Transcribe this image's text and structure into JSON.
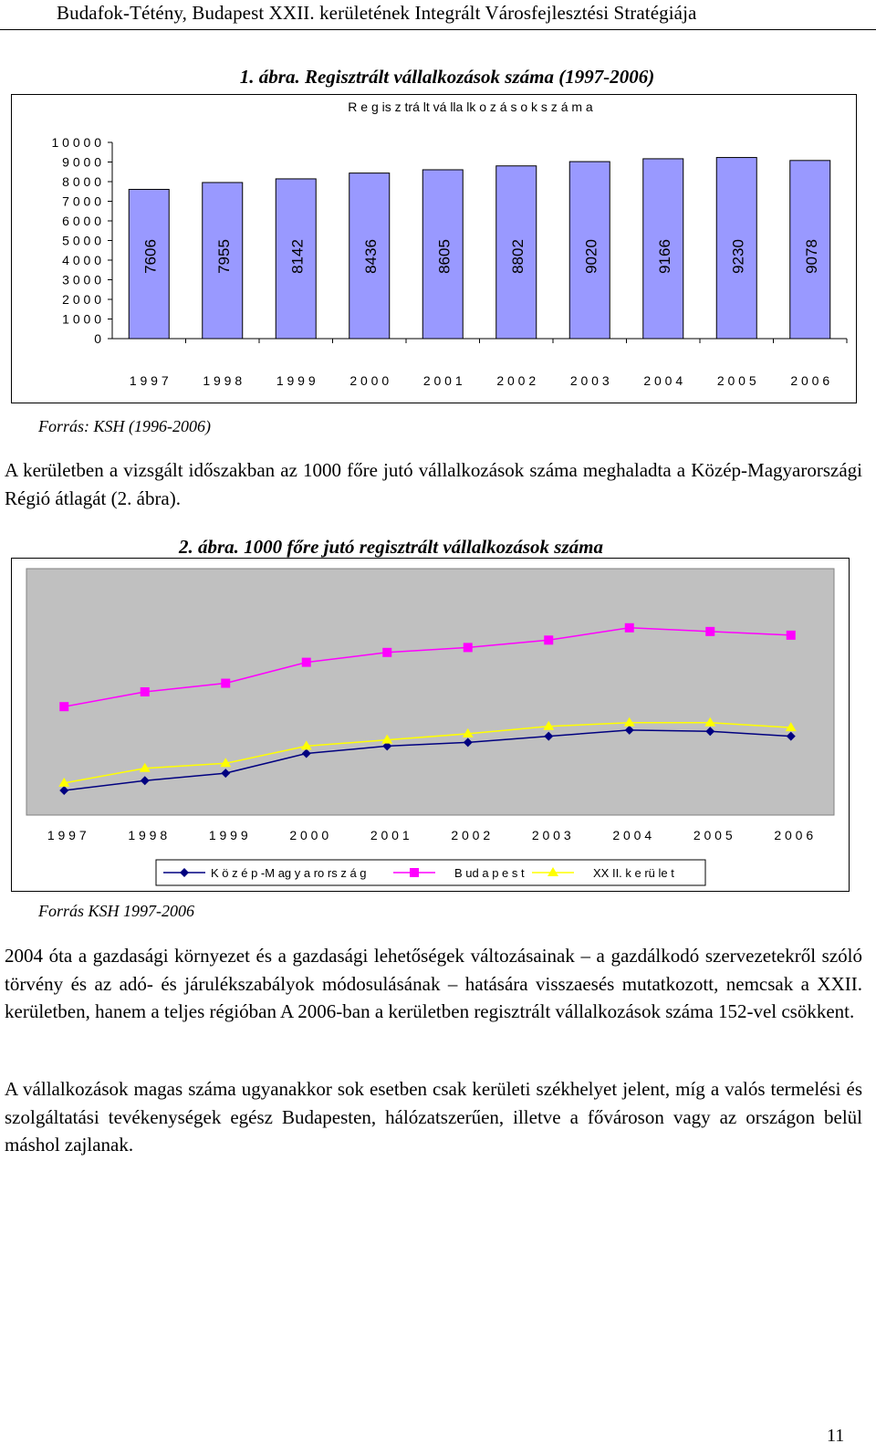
{
  "header": {
    "title": "Budafok-Tétény, Budapest XXII. kerületének Integrált Városfejlesztési Stratégiája"
  },
  "figure1": {
    "caption": "1. ábra. Regisztrált vállalkozások száma (1997-2006)",
    "source": "Forrás: KSH (1996-2006)"
  },
  "figure2": {
    "caption": "2. ábra. 1000 főre jutó regisztrált vállalkozások száma",
    "source": "Forrás KSH 1997-2006"
  },
  "paragraphs": {
    "p1": "A kerületben a vizsgált időszakban az 1000 főre jutó vállalkozások száma meghaladta a Közép-Magyarországi Régió átlagát (2. ábra).",
    "p2": "2004 óta a gazdasági környezet és a gazdasági lehetőségek változásainak – a gazdálkodó szervezetekről szóló törvény és az adó- és járulékszabályok módosulásának – hatására visszaesés mutatkozott, nemcsak a XXII. kerületben, hanem a teljes régióban A 2006-ban a kerületben regisztrált vállalkozások száma 152-vel csökkent.",
    "p3": "A vállalkozások magas száma ugyanakkor sok esetben csak kerületi székhelyet jelent, míg a valós termelési és szolgáltatási tevékenységek egész Budapesten, hálózatszerűen, illetve a fővároson vagy az országon belül máshol zajlanak."
  },
  "page_number": "11",
  "colors": {
    "bar_fill": "#9999ff",
    "plot_bg": "#c0c0c0",
    "series1": "#000080",
    "series2": "#ff00ff",
    "series3": "#ffff00"
  },
  "chart_data": [
    {
      "type": "bar",
      "title": "R e g is z trá lt vá lla lk o z á s o k s z á m a",
      "categories": [
        "1 9 9 7",
        "1 9 9 8",
        "1 9 9 9",
        "2 0 0 0",
        "2 0 0 1",
        "2 0 0 2",
        "2 0 0 3",
        "2 0 0 4",
        "2 0 0 5",
        "2 0 0 6"
      ],
      "values": [
        7606,
        7955,
        8142,
        8436,
        8605,
        8802,
        9020,
        9166,
        9230,
        9078
      ],
      "ylim": [
        0,
        10000
      ],
      "yticks": [
        "0",
        "1 0 0 0",
        "2 0 0 0",
        "3 0 0 0",
        "4 0 0 0",
        "5 0 0 0",
        "6 0 0 0",
        "7 0 0 0",
        "8 0 0 0",
        "9 0 0 0",
        "1 0 0 0 0"
      ],
      "grid": false
    },
    {
      "type": "line",
      "categories": [
        "1 9 9 7",
        "1 9 9 8",
        "1 9 9 9",
        "2 0 0 0",
        "2 0 0 1",
        "2 0 0 2",
        "2 0 0 3",
        "2 0 0 4",
        "2 0 0 5",
        "2 0 0 6"
      ],
      "ylim": [
        0,
        100
      ],
      "series": [
        {
          "name": "K ö z é p -M ag y a ro rs z á g",
          "values": [
            10,
            14,
            17,
            25,
            28,
            29.5,
            32,
            34.5,
            34,
            32
          ],
          "marker": "diamond"
        },
        {
          "name": "B ud a p e s t",
          "values": [
            44,
            50,
            53.5,
            62,
            66,
            68,
            71,
            76,
            74.5,
            73
          ],
          "marker": "square"
        },
        {
          "name": "XX II. k e rü le t",
          "values": [
            13,
            19,
            21,
            28,
            30.5,
            33,
            36,
            37.5,
            37.5,
            35.5
          ],
          "marker": "triangle"
        }
      ],
      "legend": "bottom",
      "grid": false
    }
  ]
}
